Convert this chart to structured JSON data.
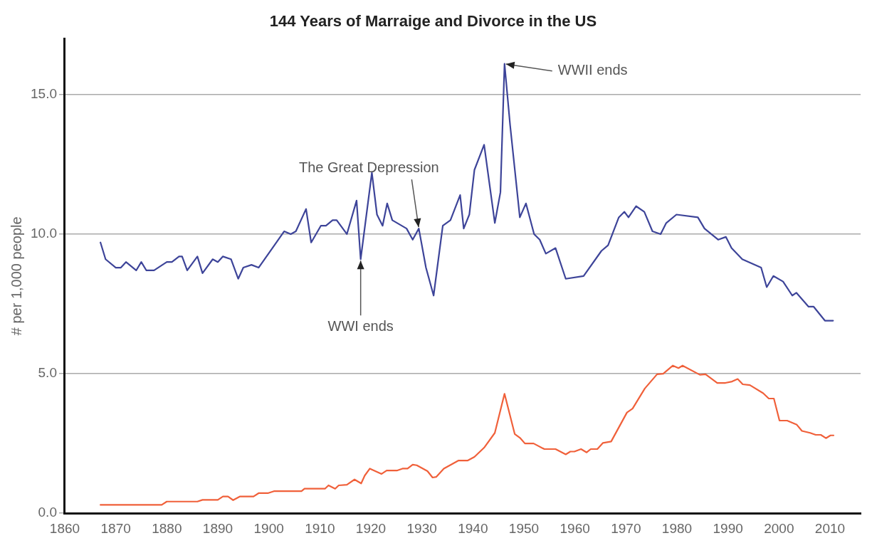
{
  "chart_data": {
    "type": "line",
    "title": "144 Years of Marraige and Divorce in the US",
    "ylabel": "# per 1,000 people",
    "xlim": [
      1860,
      2016
    ],
    "xticks": [
      1860,
      1870,
      1880,
      1890,
      1900,
      1910,
      1920,
      1930,
      1940,
      1950,
      1960,
      1970,
      1980,
      1990,
      2000,
      2010
    ],
    "ylim": [
      0,
      17
    ],
    "yticks": [
      {
        "value": 0,
        "label": "0.0"
      },
      {
        "value": 5,
        "label": "5.0"
      },
      {
        "value": 10,
        "label": "10.0"
      },
      {
        "value": 15,
        "label": "15.0"
      }
    ],
    "grid": "y",
    "legend": false,
    "marker": "none",
    "line_style": "solid",
    "series": [
      {
        "color": "#3d4499",
        "x": [
          1867,
          1868,
          1870,
          1871,
          1872,
          1874,
          1875,
          1876,
          1877.5,
          1880,
          1881,
          1882.4,
          1883,
          1884,
          1886,
          1887,
          1889,
          1890,
          1891,
          1892.6,
          1894,
          1895,
          1896.6,
          1898,
          1900.7,
          1903,
          1904.3,
          1905.3,
          1907.3,
          1908.3,
          1910.2,
          1911.2,
          1912.5,
          1913.3,
          1915.3,
          1917.2,
          1918,
          1920.2,
          1921.2,
          1922.3,
          1923.2,
          1924.2,
          1927,
          1928.2,
          1929.4,
          1930.8,
          1932.3,
          1934.1,
          1935.6,
          1937.5,
          1938.2,
          1939.3,
          1940.3,
          1942.2,
          1944.3,
          1945.4,
          1946.2,
          1947.3,
          1949.2,
          1950.4,
          1952,
          1953.1,
          1954.3,
          1956.2,
          1958.2,
          1961.7,
          1965.2,
          1966.5,
          1968.6,
          1969.7,
          1970.5,
          1972,
          1973.6,
          1975.2,
          1976.8,
          1977.9,
          1979.9,
          1984.1,
          1985.4,
          1988.1,
          1989.6,
          1990.7,
          1992.8,
          1996.5,
          1997.6,
          1998.9,
          2000.8,
          2002.6,
          2003.4,
          2005.8,
          2006.8,
          2009,
          2010.6
        ],
        "values": [
          9.7,
          9.1,
          8.8,
          8.8,
          9.0,
          8.7,
          9.0,
          8.7,
          8.7,
          9.0,
          9.0,
          9.2,
          9.2,
          8.7,
          9.2,
          8.6,
          9.1,
          9.0,
          9.2,
          9.1,
          8.4,
          8.8,
          8.9,
          8.8,
          9.5,
          10.1,
          10.0,
          10.1,
          10.9,
          9.7,
          10.3,
          10.3,
          10.5,
          10.5,
          10.0,
          11.2,
          9.1,
          12.2,
          10.7,
          10.3,
          11.1,
          10.5,
          10.2,
          9.8,
          10.2,
          8.8,
          7.8,
          10.3,
          10.5,
          11.4,
          10.2,
          10.7,
          12.3,
          13.2,
          10.4,
          11.5,
          16.1,
          13.9,
          10.6,
          11.1,
          10.0,
          9.8,
          9.3,
          9.5,
          8.4,
          8.5,
          9.4,
          9.6,
          10.6,
          10.8,
          10.6,
          11.0,
          10.8,
          10.1,
          10.0,
          10.4,
          10.7,
          10.6,
          10.2,
          9.8,
          9.9,
          9.5,
          9.1,
          8.8,
          8.1,
          8.5,
          8.3,
          7.8,
          7.9,
          7.4,
          7.4,
          6.9,
          6.9
        ]
      },
      {
        "color": "#f0603a",
        "x": [
          1867,
          1879,
          1880,
          1886,
          1887,
          1890,
          1891,
          1892,
          1893,
          1894.3,
          1897,
          1898,
          1899.8,
          1901,
          1906.4,
          1907,
          1911,
          1911.7,
          1913,
          1913.7,
          1915.3,
          1916.8,
          1918.1,
          1918.8,
          1919.8,
          1922.1,
          1923.1,
          1925.1,
          1926.2,
          1927.2,
          1928.2,
          1929,
          1931.1,
          1932.1,
          1932.8,
          1934.3,
          1937.2,
          1939,
          1940.3,
          1942.2,
          1944.3,
          1946.2,
          1948.2,
          1949.3,
          1950.2,
          1951.9,
          1954,
          1956.2,
          1958.2,
          1959.1,
          1959.9,
          1961.2,
          1962.3,
          1963.1,
          1964.4,
          1965.5,
          1967.1,
          1970.2,
          1971.3,
          1973.7,
          1976.1,
          1977.3,
          1979.2,
          1980.3,
          1981.1,
          1984.5,
          1985.6,
          1987.9,
          1989.5,
          1990.8,
          1991.9,
          1992.9,
          1994.3,
          1996.9,
          1998,
          1999,
          2000.1,
          2001.6,
          2003.5,
          2004.5,
          2006.1,
          2007.2,
          2008.2,
          2009.2,
          2010.1,
          2010.7
        ],
        "values": [
          0.3,
          0.3,
          0.42,
          0.42,
          0.48,
          0.48,
          0.6,
          0.6,
          0.47,
          0.6,
          0.6,
          0.72,
          0.72,
          0.79,
          0.79,
          0.88,
          0.88,
          1.0,
          0.88,
          1.0,
          1.02,
          1.21,
          1.07,
          1.35,
          1.6,
          1.41,
          1.53,
          1.53,
          1.6,
          1.6,
          1.74,
          1.72,
          1.51,
          1.28,
          1.3,
          1.6,
          1.89,
          1.89,
          2.02,
          2.35,
          2.88,
          4.28,
          2.84,
          2.69,
          2.5,
          2.5,
          2.3,
          2.3,
          2.11,
          2.21,
          2.21,
          2.3,
          2.18,
          2.3,
          2.3,
          2.52,
          2.57,
          3.61,
          3.75,
          4.47,
          4.98,
          5.0,
          5.29,
          5.2,
          5.29,
          4.96,
          4.98,
          4.67,
          4.67,
          4.72,
          4.81,
          4.62,
          4.59,
          4.3,
          4.11,
          4.11,
          3.32,
          3.32,
          3.17,
          2.95,
          2.88,
          2.81,
          2.81,
          2.69,
          2.79,
          2.79
        ]
      }
    ],
    "annotations": [
      {
        "text": "WWII ends",
        "x": 1946.2,
        "y": 16.1
      },
      {
        "text": "The Great Depression",
        "x": 1929.4,
        "y": 10.2
      },
      {
        "text": "WWI ends",
        "x": 1918,
        "y": 9.1
      }
    ]
  }
}
